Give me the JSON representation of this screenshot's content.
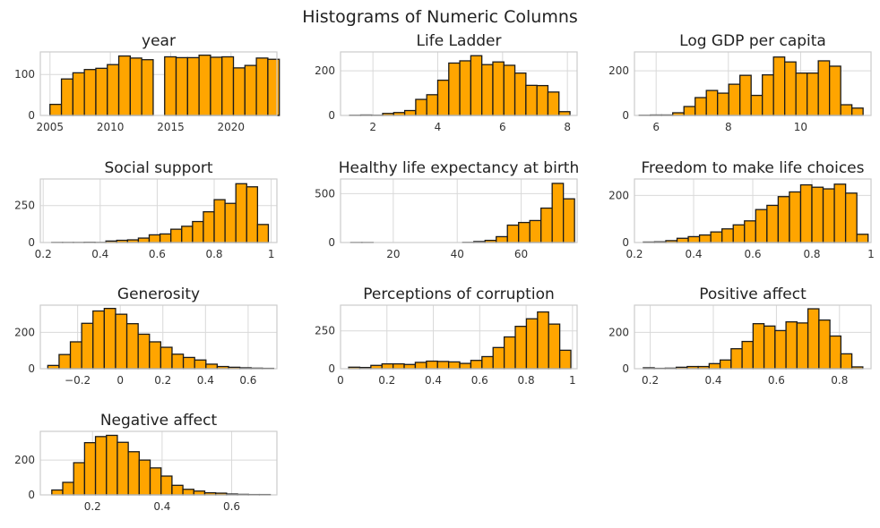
{
  "figure": {
    "title": "Histograms of Numeric Columns"
  },
  "style": {
    "bar_fill": "#FFA500",
    "bar_edge": "#1a1a1a",
    "grid": "#d9d9d9",
    "frame": "#cccccc"
  },
  "chart_data": [
    {
      "type": "bar",
      "title": "year",
      "xlim": [
        2004.2,
        2023.8
      ],
      "ylim": [
        0,
        155
      ],
      "grid": true,
      "xticks": [
        2005,
        2010,
        2015,
        2020
      ],
      "yticks": [
        0,
        100
      ],
      "bin_edges": [
        2005,
        2005.95,
        2006.9,
        2007.85,
        2008.8,
        2009.75,
        2010.7,
        2011.65,
        2012.6,
        2013.55,
        2014.5,
        2015.45,
        2016.4,
        2017.35,
        2018.3,
        2019.25,
        2020.2,
        2021.15,
        2022.1,
        2023.05,
        2024
      ],
      "values": [
        27,
        89,
        104,
        112,
        115,
        124,
        145,
        140,
        136,
        0,
        143,
        141,
        141,
        147,
        142,
        143,
        116,
        122,
        140,
        137
      ]
    },
    {
      "type": "bar",
      "title": "Life Ladder",
      "xlim": [
        1.0,
        8.3
      ],
      "ylim": [
        0,
        285
      ],
      "grid": true,
      "xticks": [
        2,
        4,
        6,
        8
      ],
      "yticks": [
        0,
        200
      ],
      "bin_edges": [
        1.28,
        1.62,
        1.96,
        2.3,
        2.64,
        2.98,
        3.32,
        3.66,
        4.0,
        4.34,
        4.68,
        5.02,
        5.36,
        5.7,
        6.04,
        6.38,
        6.72,
        7.06,
        7.4,
        7.74,
        8.08
      ],
      "values": [
        1,
        2,
        1,
        9,
        13,
        22,
        72,
        93,
        158,
        235,
        245,
        268,
        228,
        240,
        225,
        190,
        135,
        134,
        105,
        17
      ]
    },
    {
      "type": "bar",
      "title": "Log GDP per capita",
      "xlim": [
        5.4,
        11.95
      ],
      "ylim": [
        0,
        285
      ],
      "grid": true,
      "xticks": [
        6,
        8,
        10
      ],
      "yticks": [
        0,
        200
      ],
      "bin_edges": [
        5.53,
        5.84,
        6.15,
        6.46,
        6.77,
        7.08,
        7.39,
        7.7,
        8.01,
        8.32,
        8.63,
        8.94,
        9.25,
        9.56,
        9.87,
        10.18,
        10.49,
        10.8,
        11.11,
        11.42,
        11.73
      ],
      "values": [
        1,
        2,
        2,
        12,
        40,
        80,
        112,
        100,
        140,
        180,
        90,
        182,
        262,
        240,
        190,
        190,
        245,
        221,
        48,
        33
      ]
    },
    {
      "type": "bar",
      "title": "Social support",
      "xlim": [
        0.19,
        1.02
      ],
      "ylim": [
        0,
        430
      ],
      "grid": true,
      "xticks": [
        0.2,
        0.4,
        0.6,
        0.8,
        1.0
      ],
      "yticks": [
        0,
        250
      ],
      "bin_edges": [
        0.23,
        0.268,
        0.306,
        0.344,
        0.382,
        0.42,
        0.458,
        0.496,
        0.534,
        0.572,
        0.61,
        0.648,
        0.686,
        0.724,
        0.762,
        0.8,
        0.838,
        0.876,
        0.914,
        0.952,
        0.99
      ],
      "values": [
        1,
        1,
        1,
        2,
        1,
        10,
        15,
        18,
        30,
        52,
        58,
        90,
        110,
        142,
        208,
        290,
        265,
        398,
        377,
        122
      ]
    },
    {
      "type": "bar",
      "title": "Healthy life expectancy at birth",
      "xlim": [
        3.5,
        77.5
      ],
      "ylim": [
        0,
        650
      ],
      "grid": true,
      "xticks": [
        20,
        40,
        60
      ],
      "yticks": [
        0,
        500
      ],
      "bin_edges": [
        6.7,
        10.2,
        13.7,
        17.2,
        20.7,
        24.2,
        27.7,
        31.2,
        34.7,
        38.2,
        41.7,
        45.2,
        48.7,
        52.2,
        55.7,
        59.2,
        62.7,
        66.2,
        69.7,
        73.2,
        76.7
      ],
      "values": [
        1,
        1,
        0,
        0,
        0,
        0,
        0,
        0,
        0,
        0,
        2,
        10,
        22,
        60,
        178,
        205,
        225,
        352,
        605,
        447
      ]
    },
    {
      "type": "bar",
      "title": "Freedom to make life choices",
      "xlim": [
        0.2,
        1.0
      ],
      "ylim": [
        0,
        270
      ],
      "grid": true,
      "xticks": [
        0.2,
        0.4,
        0.6,
        0.8,
        1.0
      ],
      "yticks": [
        0,
        200
      ],
      "bin_edges": [
        0.23,
        0.268,
        0.306,
        0.344,
        0.382,
        0.42,
        0.458,
        0.496,
        0.534,
        0.572,
        0.61,
        0.648,
        0.686,
        0.724,
        0.762,
        0.8,
        0.838,
        0.876,
        0.914,
        0.952,
        0.99
      ],
      "values": [
        2,
        3,
        8,
        18,
        25,
        32,
        45,
        58,
        75,
        92,
        140,
        158,
        195,
        215,
        245,
        235,
        228,
        248,
        210,
        35
      ]
    },
    {
      "type": "bar",
      "title": "Generosity",
      "xlim": [
        -0.375,
        0.735
      ],
      "ylim": [
        0,
        350
      ],
      "grid": true,
      "xticks": [
        -0.2,
        0.0,
        0.2,
        0.4,
        0.6
      ],
      "yticks": [
        0,
        200
      ],
      "bin_edges": [
        -0.34,
        -0.287,
        -0.234,
        -0.181,
        -0.128,
        -0.075,
        -0.022,
        0.031,
        0.084,
        0.137,
        0.19,
        0.243,
        0.296,
        0.349,
        0.402,
        0.455,
        0.508,
        0.561,
        0.614,
        0.667,
        0.72
      ],
      "values": [
        18,
        78,
        148,
        250,
        318,
        332,
        300,
        248,
        190,
        148,
        118,
        80,
        62,
        48,
        25,
        12,
        8,
        5,
        3,
        2
      ]
    },
    {
      "type": "bar",
      "title": "Perceptions of corruption",
      "xlim": [
        0.0,
        1.02
      ],
      "ylim": [
        0,
        420
      ],
      "grid": true,
      "xticks": [
        0.0,
        0.2,
        0.4,
        0.6,
        0.8,
        1.0
      ],
      "yticks": [
        0,
        250
      ],
      "bin_edges": [
        0.035,
        0.0829,
        0.1308,
        0.1787,
        0.2266,
        0.2745,
        0.3224,
        0.3703,
        0.4182,
        0.4661,
        0.514,
        0.5619,
        0.6098,
        0.6577,
        0.7056,
        0.7535,
        0.8014,
        0.8493,
        0.8972,
        0.9451,
        0.993
      ],
      "values": [
        10,
        8,
        22,
        32,
        32,
        28,
        42,
        50,
        48,
        45,
        35,
        55,
        80,
        140,
        210,
        280,
        330,
        375,
        295,
        122
      ]
    },
    {
      "type": "bar",
      "title": "Positive affect",
      "xlim": [
        0.15,
        0.9
      ],
      "ylim": [
        0,
        350
      ],
      "grid": true,
      "xticks": [
        0.2,
        0.4,
        0.6,
        0.8
      ],
      "yticks": [
        0,
        200
      ],
      "bin_edges": [
        0.178,
        0.2128,
        0.2476,
        0.2824,
        0.3172,
        0.352,
        0.3868,
        0.4216,
        0.4564,
        0.4912,
        0.526,
        0.5608,
        0.5956,
        0.6304,
        0.6652,
        0.7,
        0.7348,
        0.7696,
        0.8044,
        0.8392,
        0.874
      ],
      "values": [
        5,
        2,
        3,
        8,
        12,
        12,
        28,
        48,
        110,
        150,
        248,
        235,
        210,
        258,
        252,
        330,
        268,
        180,
        82,
        10
      ]
    },
    {
      "type": "bar",
      "title": "Negative affect",
      "xlim": [
        0.05,
        0.73
      ],
      "ylim": [
        0,
        365
      ],
      "grid": true,
      "xticks": [
        0.2,
        0.4,
        0.6
      ],
      "yticks": [
        0,
        200
      ],
      "bin_edges": [
        0.083,
        0.1144,
        0.1458,
        0.1772,
        0.2086,
        0.24,
        0.2714,
        0.3028,
        0.3342,
        0.3656,
        0.397,
        0.4284,
        0.4598,
        0.4912,
        0.5226,
        0.554,
        0.5854,
        0.6168,
        0.6482,
        0.6796,
        0.711
      ],
      "values": [
        28,
        72,
        185,
        300,
        335,
        342,
        302,
        248,
        200,
        155,
        108,
        55,
        32,
        22,
        12,
        10,
        5,
        3,
        2,
        2
      ]
    }
  ]
}
